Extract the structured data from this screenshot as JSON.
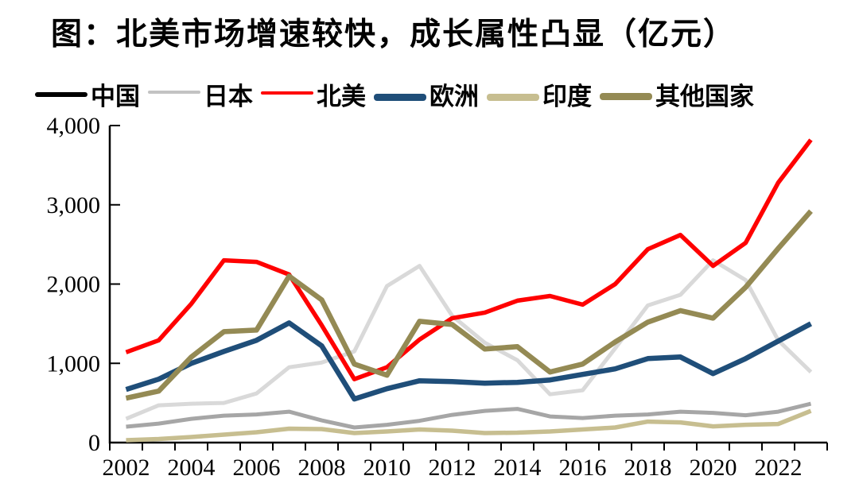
{
  "title": "图：北美市场增速较快，成长属性凸显（亿元）",
  "legend": {
    "items": [
      {
        "label": "中国",
        "swatch_color": "#000000"
      },
      {
        "label": "日本",
        "swatch_color": "#C3C3C3"
      },
      {
        "label": "北美",
        "swatch_color": "#FF0000"
      },
      {
        "label": "欧洲",
        "swatch_color": "#1F4E79"
      },
      {
        "label": "印度",
        "swatch_color": "#C7BE90"
      },
      {
        "label": "其他国家",
        "swatch_color": "#948A54"
      }
    ]
  },
  "chart_data": {
    "type": "line",
    "title": "图：北美市场增速较快，成长属性凸显（亿元）",
    "unit": "亿元",
    "x": [
      2002,
      2003,
      2004,
      2005,
      2006,
      2007,
      2008,
      2009,
      2010,
      2011,
      2012,
      2013,
      2014,
      2015,
      2016,
      2017,
      2018,
      2019,
      2020,
      2021,
      2022,
      2023
    ],
    "x_axis_tick_labels": [
      "2002",
      "2004",
      "2006",
      "2008",
      "2010",
      "2012",
      "2014",
      "2016",
      "2018",
      "2020",
      "2022"
    ],
    "ylim": [
      0,
      4000
    ],
    "grid": false,
    "legend_position": "top",
    "y_ticks": [
      {
        "value": 0,
        "label": "0"
      },
      {
        "value": 1000,
        "label": "1,000"
      },
      {
        "value": 2000,
        "label": "2,000"
      },
      {
        "value": 3000,
        "label": "3,000"
      },
      {
        "value": 4000,
        "label": "4,000"
      }
    ],
    "series": [
      {
        "key": "line-china",
        "name": "中国",
        "color": "#A6A6A6",
        "values": [
          200,
          240,
          300,
          340,
          355,
          390,
          280,
          190,
          225,
          275,
          350,
          400,
          425,
          330,
          310,
          340,
          355,
          390,
          375,
          345,
          390,
          490
        ]
      },
      {
        "key": "line-japan",
        "name": "日本",
        "color": "#D9D9D9",
        "values": [
          300,
          470,
          490,
          500,
          620,
          950,
          1010,
          1150,
          1975,
          2230,
          1600,
          1260,
          1040,
          610,
          660,
          1190,
          1730,
          1865,
          2300,
          2050,
          1290,
          890
        ]
      },
      {
        "key": "line-north-america",
        "name": "北美",
        "color": "#FF0000",
        "values": [
          1140,
          1290,
          1750,
          2300,
          2280,
          2120,
          1480,
          800,
          950,
          1300,
          1570,
          1640,
          1790,
          1850,
          1740,
          2000,
          2440,
          2620,
          2230,
          2520,
          3280,
          3820
        ]
      },
      {
        "key": "line-europe",
        "name": "欧洲",
        "color": "#1F4E79",
        "values": [
          670,
          800,
          1000,
          1150,
          1290,
          1510,
          1220,
          550,
          680,
          780,
          770,
          750,
          760,
          790,
          860,
          930,
          1060,
          1080,
          870,
          1060,
          1280,
          1500
        ]
      },
      {
        "key": "line-india",
        "name": "印度",
        "color": "#C7BE90",
        "values": [
          30,
          45,
          70,
          100,
          130,
          175,
          170,
          120,
          140,
          165,
          150,
          120,
          125,
          140,
          165,
          190,
          265,
          255,
          205,
          225,
          235,
          400
        ]
      },
      {
        "key": "line-other-countries",
        "name": "其他国家",
        "color": "#948A54",
        "values": [
          560,
          650,
          1080,
          1400,
          1420,
          2100,
          1800,
          990,
          850,
          1530,
          1490,
          1180,
          1210,
          890,
          990,
          1270,
          1520,
          1665,
          1570,
          1960,
          2450,
          2920
        ]
      }
    ]
  }
}
